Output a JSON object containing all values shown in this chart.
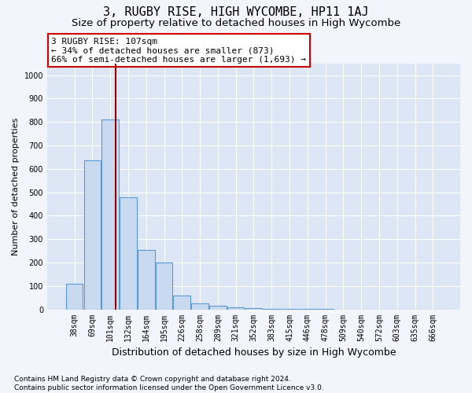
{
  "title": "3, RUGBY RISE, HIGH WYCOMBE, HP11 1AJ",
  "subtitle": "Size of property relative to detached houses in High Wycombe",
  "xlabel": "Distribution of detached houses by size in High Wycombe",
  "ylabel": "Number of detached properties",
  "footnote": "Contains HM Land Registry data © Crown copyright and database right 2024.\nContains public sector information licensed under the Open Government Licence v3.0.",
  "bar_labels": [
    "38sqm",
    "69sqm",
    "101sqm",
    "132sqm",
    "164sqm",
    "195sqm",
    "226sqm",
    "258sqm",
    "289sqm",
    "321sqm",
    "352sqm",
    "383sqm",
    "415sqm",
    "446sqm",
    "478sqm",
    "509sqm",
    "540sqm",
    "572sqm",
    "603sqm",
    "635sqm",
    "666sqm"
  ],
  "bar_values": [
    110,
    635,
    810,
    480,
    255,
    200,
    60,
    25,
    15,
    10,
    5,
    2,
    2,
    1,
    1,
    0,
    0,
    0,
    0,
    0,
    0
  ],
  "bar_color": "#c9daf0",
  "bar_edge_color": "#5b9bd5",
  "vline_position": 2.29,
  "vline_color": "#990000",
  "annotation_text": "3 RUGBY RISE: 107sqm\n← 34% of detached houses are smaller (873)\n66% of semi-detached houses are larger (1,693) →",
  "annotation_box_color": "#ffffff",
  "annotation_edge_color": "#cc0000",
  "ylim": [
    0,
    1050
  ],
  "yticks": [
    0,
    100,
    200,
    300,
    400,
    500,
    600,
    700,
    800,
    900,
    1000
  ],
  "background_color": "#f2f5fb",
  "plot_background_color": "#dce6f4",
  "grid_color": "#ffffff",
  "title_fontsize": 11,
  "subtitle_fontsize": 9.5,
  "ylabel_fontsize": 8,
  "xlabel_fontsize": 9,
  "tick_fontsize": 7,
  "annotation_fontsize": 8,
  "footnote_fontsize": 6.5
}
